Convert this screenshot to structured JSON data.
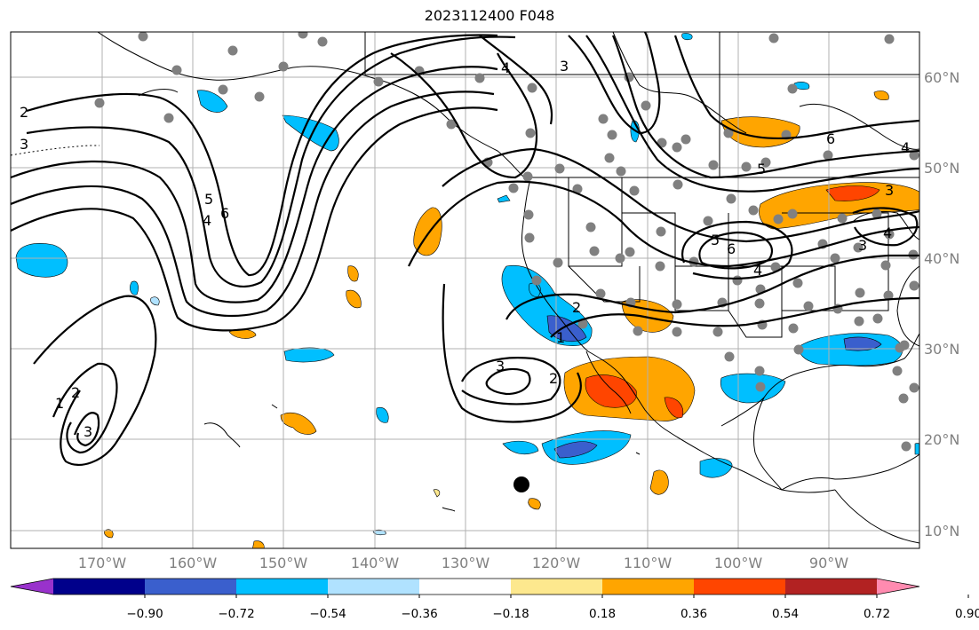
{
  "title": "2023112400 F048",
  "lon_labels": [
    "170°W",
    "160°W",
    "150°W",
    "140°W",
    "130°W",
    "120°W",
    "110°W",
    "100°W",
    "90°W"
  ],
  "lat_labels": [
    "60°N",
    "50°N",
    "40°N",
    "30°N",
    "20°N",
    "10°N"
  ],
  "colorbar": {
    "colors": [
      "#9932cc",
      "#00008b",
      "#3a5fcd",
      "#00bfff",
      "#b0e2ff",
      "#ffffff",
      "#fde88e",
      "#ffa500",
      "#ff4500",
      "#b22222",
      "#ff8bb0"
    ],
    "ticks": [
      "−0.90",
      "−0.72",
      "−0.54",
      "−0.36",
      "−0.18",
      "0.18",
      "0.36",
      "0.54",
      "0.72",
      "0.90"
    ]
  },
  "contour_labels": [
    {
      "id": "c1",
      "text": "2"
    },
    {
      "id": "c2",
      "text": "3"
    },
    {
      "id": "c3",
      "text": "5"
    },
    {
      "id": "c4",
      "text": "6"
    },
    {
      "id": "c5",
      "text": "4"
    },
    {
      "id": "c6",
      "text": "1"
    },
    {
      "id": "c7",
      "text": "2"
    },
    {
      "id": "c8",
      "text": "3"
    },
    {
      "id": "c9",
      "text": "3"
    },
    {
      "id": "c10",
      "text": "4"
    },
    {
      "id": "c11",
      "text": "2"
    },
    {
      "id": "c12",
      "text": "1"
    },
    {
      "id": "c13",
      "text": "3"
    },
    {
      "id": "c14",
      "text": "2"
    },
    {
      "id": "c15",
      "text": "6"
    },
    {
      "id": "c16",
      "text": "5"
    },
    {
      "id": "c17",
      "text": "4"
    },
    {
      "id": "c18",
      "text": "5"
    },
    {
      "id": "c19",
      "text": "6"
    },
    {
      "id": "c20",
      "text": "4"
    },
    {
      "id": "c21",
      "text": "3"
    },
    {
      "id": "c22",
      "text": "3"
    },
    {
      "id": "c23",
      "text": "4"
    }
  ]
}
